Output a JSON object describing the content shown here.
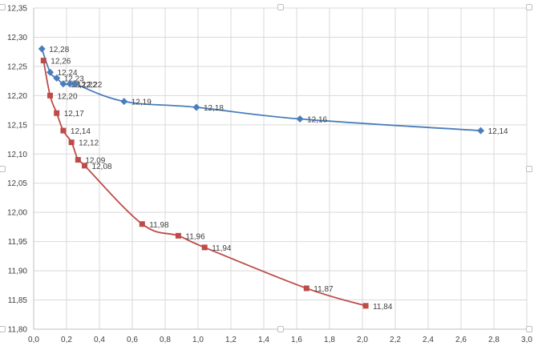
{
  "chart_data": {
    "type": "scatter",
    "title": "",
    "xlabel": "",
    "ylabel": "",
    "xlim": [
      0,
      3.0
    ],
    "ylim": [
      11.8,
      12.35
    ],
    "grid": true,
    "legend": "none",
    "x_ticks": [
      "0,0",
      "0,2",
      "0,4",
      "0,6",
      "0,8",
      "1,0",
      "1,2",
      "1,4",
      "1,6",
      "1,8",
      "2,0",
      "2,2",
      "2,4",
      "2,6",
      "2,8",
      "3,0"
    ],
    "y_ticks": [
      "11,80",
      "11,85",
      "11,90",
      "11,95",
      "12,00",
      "12,05",
      "12,10",
      "12,15",
      "12,20",
      "12,25",
      "12,30",
      "12,35"
    ],
    "series": [
      {
        "color": "#4a7ebb",
        "marker": "diamond",
        "x": [
          0.05,
          0.1,
          0.14,
          0.18,
          0.22,
          0.25,
          0.55,
          0.99,
          1.62,
          2.72
        ],
        "y": [
          12.28,
          12.24,
          12.23,
          12.22,
          12.22,
          12.22,
          12.19,
          12.18,
          12.16,
          12.14
        ],
        "labels": [
          "12,28",
          "12,24",
          "12,23",
          "12,22",
          "12,22",
          "12,22",
          "12,19",
          "12,18",
          "12,16",
          "12,14"
        ]
      },
      {
        "color": "#be4b48",
        "marker": "square",
        "x": [
          0.06,
          0.1,
          0.14,
          0.18,
          0.23,
          0.27,
          0.31,
          0.66,
          0.88,
          1.04,
          1.66,
          2.02
        ],
        "y": [
          12.26,
          12.2,
          12.17,
          12.14,
          12.12,
          12.09,
          12.08,
          11.98,
          11.96,
          11.94,
          11.87,
          11.84
        ],
        "labels": [
          "12,26",
          "12,20",
          "12,17",
          "12,14",
          "12,12",
          "12,09",
          "12,08",
          "11,98",
          "11,96",
          "11,94",
          "11,87",
          "11,84"
        ]
      }
    ]
  }
}
